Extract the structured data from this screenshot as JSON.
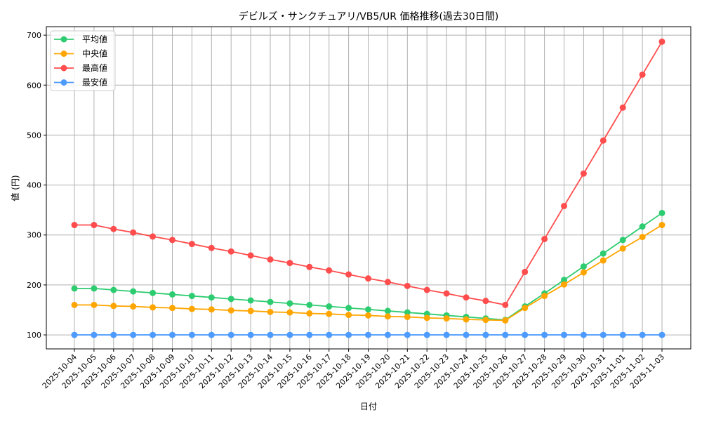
{
  "chart_data": {
    "type": "line",
    "title": "デビルズ・サンクチュアリ/VB5/UR 価格推移(過去30日間)",
    "xlabel": "日付",
    "ylabel": "値 (円)",
    "ylim": [
      72,
      717
    ],
    "yticks": [
      100,
      200,
      300,
      400,
      500,
      600,
      700
    ],
    "grid": true,
    "legend_placement": "top-left",
    "x": [
      "2025-10-04",
      "2025-10-05",
      "2025-10-06",
      "2025-10-07",
      "2025-10-08",
      "2025-10-09",
      "2025-10-10",
      "2025-10-11",
      "2025-10-12",
      "2025-10-13",
      "2025-10-14",
      "2025-10-15",
      "2025-10-16",
      "2025-10-17",
      "2025-10-18",
      "2025-10-19",
      "2025-10-20",
      "2025-10-21",
      "2025-10-22",
      "2025-10-23",
      "2025-10-24",
      "2025-10-25",
      "2025-10-26",
      "2025-10-27",
      "2025-10-28",
      "2025-10-29",
      "2025-10-30",
      "2025-10-31",
      "2025-11-01",
      "2025-11-02",
      "2025-11-03"
    ],
    "series": [
      {
        "name": "平均値",
        "color": "#2ecc71",
        "values": [
          193,
          193,
          190,
          187,
          184,
          181,
          178,
          175,
          172,
          169,
          166,
          163,
          160,
          157,
          154,
          151,
          148,
          145,
          142,
          139,
          136,
          133,
          130,
          157,
          183,
          210,
          237,
          263,
          290,
          317,
          344
        ]
      },
      {
        "name": "中央値",
        "color": "#ffa500",
        "values": [
          160,
          160,
          158,
          157,
          155,
          154,
          152,
          151,
          149,
          148,
          146,
          145,
          143,
          142,
          140,
          139,
          137,
          136,
          134,
          133,
          131,
          130,
          129,
          154,
          178,
          201,
          225,
          249,
          273,
          296,
          320
        ]
      },
      {
        "name": "最高値",
        "color": "#ff4d4d",
        "values": [
          320,
          320,
          312,
          305,
          297,
          290,
          282,
          274,
          267,
          259,
          251,
          244,
          236,
          229,
          221,
          213,
          206,
          198,
          190,
          183,
          175,
          168,
          160,
          226,
          292,
          358,
          423,
          489,
          555,
          621,
          687
        ]
      },
      {
        "name": "最安値",
        "color": "#4d9bff",
        "values": [
          100,
          100,
          100,
          100,
          100,
          100,
          100,
          100,
          100,
          100,
          100,
          100,
          100,
          100,
          100,
          100,
          100,
          100,
          100,
          100,
          100,
          100,
          100,
          100,
          100,
          100,
          100,
          100,
          100,
          100,
          100
        ]
      }
    ]
  }
}
